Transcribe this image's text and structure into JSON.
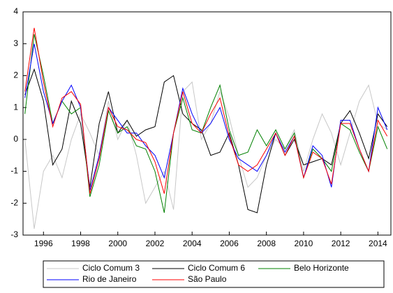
{
  "chart_data": {
    "type": "line",
    "x": [
      1995.0,
      1995.5,
      1996.0,
      1996.5,
      1997.0,
      1997.5,
      1998.0,
      1998.5,
      1999.0,
      1999.5,
      2000.0,
      2000.5,
      2001.0,
      2001.5,
      2002.0,
      2002.5,
      2003.0,
      2003.5,
      2004.0,
      2004.5,
      2005.0,
      2005.5,
      2006.0,
      2006.5,
      2007.0,
      2007.5,
      2008.0,
      2008.5,
      2009.0,
      2009.5,
      2010.0,
      2010.5,
      2011.0,
      2011.5,
      2012.0,
      2012.5,
      2013.0,
      2013.5,
      2014.0,
      2014.5
    ],
    "series": [
      {
        "name": "Ciclo Comum 3",
        "color": "#c8c8c8",
        "values": [
          0,
          -2.8,
          -1,
          -0.5,
          -1.2,
          0,
          0.8,
          0.2,
          -0.5,
          1.2,
          0,
          0.6,
          -0.5,
          -2,
          -1.5,
          -1,
          -2.2,
          1.5,
          1.8,
          0,
          0.5,
          1.5,
          0.7,
          -0.5,
          -1.5,
          -1.2,
          -0.5,
          0,
          -0.3,
          0.3,
          -1,
          0,
          0.8,
          0.2,
          -0.8,
          0.2,
          1.2,
          1.7,
          0.5,
          0.3
        ]
      },
      {
        "name": "Ciclo Comum 6",
        "color": "#000000",
        "values": [
          1.4,
          2.2,
          1.2,
          -0.8,
          -0.3,
          1.2,
          0.5,
          -1.5,
          0.5,
          1.5,
          0.2,
          0.6,
          0.1,
          0.3,
          0.4,
          1.8,
          2.0,
          0.8,
          0.5,
          0.3,
          -0.5,
          -0.4,
          0.2,
          -0.8,
          -2.2,
          -2.3,
          -0.8,
          0.2,
          -0.5,
          0,
          -0.8,
          -0.7,
          -0.6,
          -0.8,
          0.5,
          0.9,
          0.2,
          -0.6,
          0.8,
          0.4
        ]
      },
      {
        "name": "Belo Horizonte",
        "color": "#008000",
        "values": [
          0.8,
          3.3,
          2.0,
          0.5,
          1.2,
          0.8,
          1.0,
          -1.8,
          -0.8,
          0.9,
          0.2,
          0.4,
          -0.2,
          -0.3,
          -1.0,
          -2.3,
          0.2,
          1.3,
          0.3,
          0.2,
          1.0,
          1.7,
          0.3,
          -0.5,
          -0.4,
          0.3,
          -0.2,
          0.3,
          -0.3,
          0.2,
          -1.2,
          -0.3,
          -0.6,
          -1.0,
          0.5,
          0.3,
          -0.4,
          -1.0,
          0.4,
          -0.3
        ]
      },
      {
        "name": "Rio de Janeiro",
        "color": "#0000ff",
        "values": [
          1.3,
          3.0,
          1.5,
          0.5,
          1.2,
          1.7,
          1.0,
          -1.6,
          -0.5,
          1.0,
          0.6,
          0.2,
          0.2,
          -0.2,
          -0.5,
          -1.2,
          0.2,
          1.6,
          0.8,
          0.2,
          0.5,
          1.0,
          0,
          -0.6,
          -0.8,
          -1.0,
          -0.5,
          0.2,
          -0.4,
          0.1,
          -1.2,
          -0.2,
          -0.5,
          -1.5,
          0.6,
          0.6,
          -0.3,
          -1.0,
          1.0,
          0.3
        ]
      },
      {
        "name": "São Paulo",
        "color": "#ff0000",
        "values": [
          1.5,
          3.5,
          1.8,
          0.4,
          1.3,
          1.5,
          1.1,
          -1.7,
          -0.6,
          1.0,
          0.4,
          0.3,
          0,
          -0.1,
          -0.7,
          -1.7,
          0.2,
          1.5,
          0.5,
          0.2,
          0.8,
          1.3,
          0.1,
          -0.8,
          -1.0,
          -0.8,
          -0.3,
          0.2,
          -0.5,
          0.1,
          -1.2,
          -0.4,
          -0.6,
          -1.4,
          0.5,
          0.5,
          -0.3,
          -1.0,
          0.6,
          0.1
        ]
      }
    ],
    "xlim": [
      1994.9,
      2014.7
    ],
    "xticks": [
      1996,
      1998,
      2000,
      2002,
      2004,
      2006,
      2008,
      2010,
      2012,
      2014
    ],
    "ylim": [
      -3,
      4
    ],
    "yticks": [
      -3,
      -2,
      -1,
      0,
      1,
      2,
      3,
      4
    ],
    "grid": false
  }
}
